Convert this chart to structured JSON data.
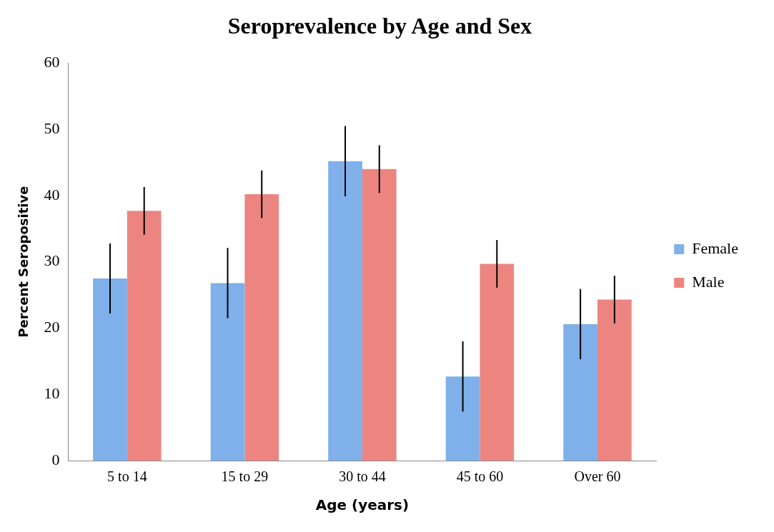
{
  "chart_data": {
    "type": "bar",
    "title": "Seroprevalence by Age and Sex",
    "xlabel": "Age (years)",
    "ylabel": "Percent Seropositive",
    "categories": [
      "5 to 14",
      "15 to 29",
      "30 to 44",
      "45 to 60",
      "Over 60"
    ],
    "series": [
      {
        "name": "Female",
        "color": "#7fb0ea",
        "values": [
          27.5,
          26.8,
          45.2,
          12.7,
          20.6
        ],
        "errors": [
          5.3,
          5.3,
          5.3,
          5.3,
          5.3
        ]
      },
      {
        "name": "Male",
        "color": "#ec8580",
        "values": [
          37.7,
          40.2,
          44.0,
          29.7,
          24.3
        ],
        "errors": [
          3.6,
          3.6,
          3.6,
          3.6,
          3.6
        ]
      }
    ],
    "ylim": [
      0,
      60
    ],
    "yticks": [
      0,
      10,
      20,
      30,
      40,
      50,
      60
    ],
    "grid": false,
    "legend": "right"
  }
}
